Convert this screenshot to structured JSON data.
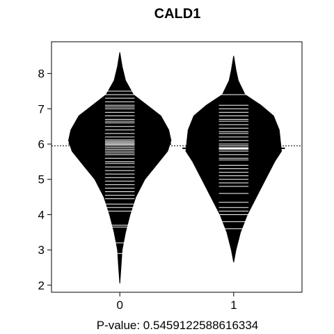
{
  "chart_data": {
    "type": "beanplot",
    "title": "CALD1",
    "xlabel": "P-value: 0.5459122588616334",
    "ylabel": "",
    "categories": [
      "0",
      "1"
    ],
    "ylim": [
      1.8,
      8.9
    ],
    "yticks": [
      2,
      3,
      4,
      5,
      6,
      7,
      8
    ],
    "overall_mean_line": 5.95,
    "series": [
      {
        "group": "0",
        "range": [
          2.05,
          8.6
        ],
        "mean": 6.0,
        "density": [
          {
            "y": 2.05,
            "w": 0.0
          },
          {
            "y": 2.5,
            "w": 0.01
          },
          {
            "y": 3.0,
            "w": 0.02
          },
          {
            "y": 3.5,
            "w": 0.05
          },
          {
            "y": 4.0,
            "w": 0.09
          },
          {
            "y": 4.5,
            "w": 0.14
          },
          {
            "y": 5.0,
            "w": 0.22
          },
          {
            "y": 5.4,
            "w": 0.32
          },
          {
            "y": 5.8,
            "w": 0.42
          },
          {
            "y": 6.1,
            "w": 0.45
          },
          {
            "y": 6.4,
            "w": 0.43
          },
          {
            "y": 6.8,
            "w": 0.36
          },
          {
            "y": 7.1,
            "w": 0.24
          },
          {
            "y": 7.4,
            "w": 0.12
          },
          {
            "y": 7.8,
            "w": 0.05
          },
          {
            "y": 8.2,
            "w": 0.02
          },
          {
            "y": 8.6,
            "w": 0.0
          }
        ],
        "points": [
          2.9,
          3.2,
          3.65,
          3.7,
          4.1,
          4.2,
          4.3,
          4.45,
          4.55,
          4.65,
          4.75,
          4.85,
          4.95,
          5.05,
          5.15,
          5.25,
          5.35,
          5.45,
          5.5,
          5.6,
          5.7,
          5.75,
          5.8,
          5.85,
          5.9,
          5.95,
          6.0,
          6.05,
          6.08,
          6.12,
          6.2,
          6.3,
          6.4,
          6.5,
          6.6,
          6.65,
          6.7,
          6.8,
          6.9,
          7.0,
          7.05,
          7.1,
          7.2,
          7.3,
          7.4,
          7.5
        ]
      },
      {
        "group": "1",
        "range": [
          2.65,
          8.5
        ],
        "mean": 5.88,
        "density": [
          {
            "y": 2.65,
            "w": 0.0
          },
          {
            "y": 3.0,
            "w": 0.02
          },
          {
            "y": 3.5,
            "w": 0.06
          },
          {
            "y": 4.0,
            "w": 0.12
          },
          {
            "y": 4.5,
            "w": 0.2
          },
          {
            "y": 5.0,
            "w": 0.28
          },
          {
            "y": 5.5,
            "w": 0.36
          },
          {
            "y": 5.8,
            "w": 0.42
          },
          {
            "y": 6.1,
            "w": 0.41
          },
          {
            "y": 6.4,
            "w": 0.4
          },
          {
            "y": 6.8,
            "w": 0.35
          },
          {
            "y": 7.1,
            "w": 0.24
          },
          {
            "y": 7.4,
            "w": 0.1
          },
          {
            "y": 7.8,
            "w": 0.04
          },
          {
            "y": 8.1,
            "w": 0.02
          },
          {
            "y": 8.5,
            "w": 0.0
          }
        ],
        "points": [
          3.6,
          3.8,
          4.0,
          4.1,
          4.2,
          4.35,
          4.6,
          4.8,
          4.9,
          5.0,
          5.1,
          5.2,
          5.3,
          5.4,
          5.55,
          5.6,
          5.7,
          5.8,
          5.85,
          5.9,
          5.95,
          6.0,
          6.1,
          6.2,
          6.3,
          6.35,
          6.45,
          6.55,
          6.65,
          6.7,
          6.8,
          6.9,
          7.0,
          7.1,
          7.4
        ]
      }
    ],
    "colors": {
      "bean": "#000000",
      "lines": "#ffffff",
      "mean_line": "#000000",
      "frame": "#000000"
    },
    "grid": false
  }
}
